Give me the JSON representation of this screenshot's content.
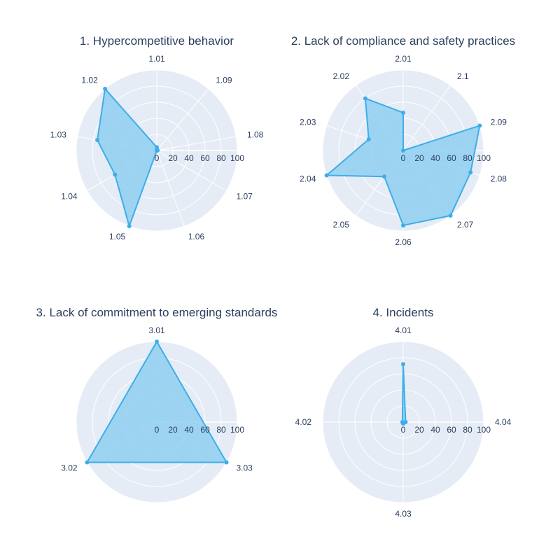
{
  "chart_data": [
    {
      "type": "radar",
      "title": "1. Hypercompetitive behavior",
      "categories": [
        "1.01",
        "1.09",
        "1.08",
        "1.07",
        "1.06",
        "1.05",
        "1.04",
        "1.03",
        "1.02"
      ],
      "values": [
        4,
        0,
        1,
        0,
        0,
        100,
        60,
        75,
        100
      ],
      "radial_ticks": [
        0,
        20,
        40,
        60,
        80,
        100
      ],
      "radial_range": [
        0,
        100
      ],
      "rotation_start_category": "1.01",
      "direction": "clockwise",
      "grid": true,
      "color": "#3daee9",
      "fill_color": "#8fcff0",
      "background": "#e5ecf6"
    },
    {
      "type": "radar",
      "title": "2. Lack of compliance and safety practices",
      "categories": [
        "2.01",
        "2.1",
        "2.09",
        "2.08",
        "2.07",
        "2.06",
        "2.05",
        "2.04",
        "2.03",
        "2.02"
      ],
      "values": [
        47,
        0,
        100,
        88,
        100,
        93,
        40,
        100,
        45,
        80
      ],
      "radial_ticks": [
        0,
        20,
        40,
        60,
        80,
        100
      ],
      "radial_range": [
        0,
        100
      ],
      "rotation_start_category": "2.01",
      "direction": "clockwise",
      "grid": true,
      "color": "#3daee9",
      "fill_color": "#8fcff0",
      "background": "#e5ecf6"
    },
    {
      "type": "radar",
      "title": "3. Lack of commitment to emerging standards",
      "categories": [
        "3.01",
        "3.03",
        "3.02"
      ],
      "values": [
        100,
        100,
        100
      ],
      "radial_ticks": [
        0,
        20,
        40,
        60,
        80,
        100
      ],
      "radial_range": [
        0,
        100
      ],
      "rotation_start_category": "3.01",
      "direction": "clockwise",
      "grid": true,
      "color": "#3daee9",
      "fill_color": "#8fcff0",
      "background": "#e5ecf6"
    },
    {
      "type": "radar",
      "title": "4. Incidents",
      "categories": [
        "4.01",
        "4.04",
        "4.03",
        "4.02"
      ],
      "values": [
        72,
        3,
        2,
        1
      ],
      "radial_ticks": [
        0,
        20,
        40,
        60,
        80,
        100
      ],
      "radial_range": [
        0,
        100
      ],
      "rotation_start_category": "4.01",
      "direction": "clockwise",
      "grid": true,
      "color": "#3daee9",
      "fill_color": "#8fcff0",
      "background": "#e5ecf6"
    }
  ]
}
